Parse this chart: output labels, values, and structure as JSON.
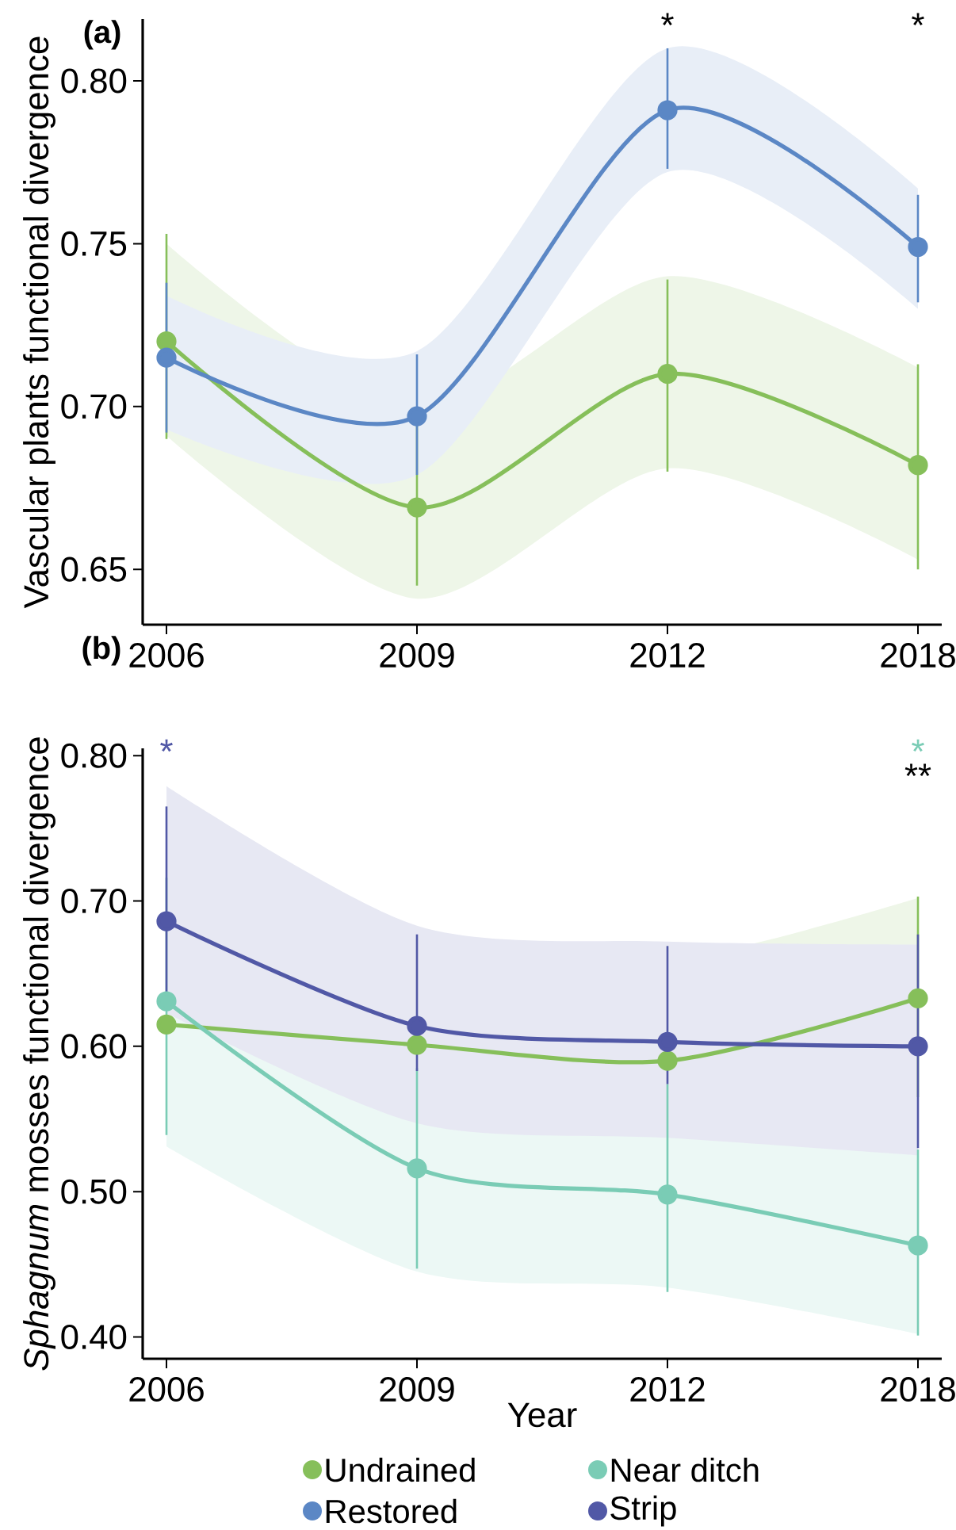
{
  "chart_data": [
    {
      "type": "line",
      "ylabel": "Vascular plants functional divergence",
      "categories": [
        "2006",
        "2009",
        "2012",
        "2018"
      ],
      "ylim": [
        0.633,
        0.819
      ],
      "yticks": [
        {
          "value": 0.65,
          "label": "0.65"
        },
        {
          "value": 0.7,
          "label": "0.70"
        },
        {
          "value": 0.75,
          "label": "0.75"
        },
        {
          "value": 0.8,
          "label": "0.80"
        }
      ],
      "marker": "circle",
      "legend": "bottom",
      "series": [
        {
          "name": "Undrained",
          "color": "#86bf5a",
          "values": [
            0.72,
            0.669,
            0.71,
            0.682
          ],
          "errors": [
            [
              0.69,
              0.753
            ],
            [
              0.645,
              0.695
            ],
            [
              0.68,
              0.739
            ],
            [
              0.65,
              0.713
            ]
          ],
          "lower": [
            0.691,
            0.641,
            0.681,
            0.653
          ],
          "upper": [
            0.75,
            0.7,
            0.74,
            0.712
          ]
        },
        {
          "name": "Restored",
          "color": "#5b87c5",
          "values": [
            0.715,
            0.697,
            0.791,
            0.749
          ],
          "errors": [
            [
              0.692,
              0.738
            ],
            [
              0.679,
              0.716
            ],
            [
              0.773,
              0.81
            ],
            [
              0.732,
              0.765
            ]
          ],
          "lower": [
            0.693,
            0.679,
            0.772,
            0.73
          ],
          "upper": [
            0.734,
            0.717,
            0.81,
            0.767
          ]
        }
      ],
      "annotations": [
        "**(a)**",
        "*",
        "*"
      ]
    },
    {
      "type": "line",
      "xlabel": "Year",
      "ylabel": "*Sphagnum* mosses functional divergence",
      "categories": [
        "2006",
        "2009",
        "2012",
        "2018"
      ],
      "ylim": [
        0.385,
        0.805
      ],
      "yticks": [
        {
          "value": 0.4,
          "label": "0.40"
        },
        {
          "value": 0.5,
          "label": "0.50"
        },
        {
          "value": 0.6,
          "label": "0.60"
        },
        {
          "value": 0.7,
          "label": "0.70"
        },
        {
          "value": 0.8,
          "label": "0.80"
        }
      ],
      "marker": "circle",
      "legend": "bottom",
      "series": [
        {
          "color": "#86bf5a",
          "values": [
            0.615,
            0.601,
            0.59,
            0.633
          ],
          "errors": [
            null,
            null,
            null,
            [
              0.565,
              0.703
            ]
          ],
          "lower": [
            0.55,
            0.541,
            0.529,
            0.566
          ],
          "upper": [
            0.665,
            0.667,
            0.659,
            0.702
          ]
        },
        {
          "name": "Near ditch",
          "color": "#7accb5",
          "values": [
            0.631,
            0.516,
            0.498,
            0.463
          ],
          "errors": [
            [
              0.539,
              0.716
            ],
            [
              0.447,
              0.585
            ],
            [
              0.431,
              0.574
            ],
            [
              0.401,
              0.529
            ]
          ],
          "lower": [
            0.531,
            0.445,
            0.434,
            0.402
          ],
          "upper": [
            0.732,
            0.589,
            0.569,
            0.527
          ]
        },
        {
          "name": "Strip",
          "color": "#5158a6",
          "values": [
            0.686,
            0.614,
            0.603,
            0.6
          ],
          "errors": [
            [
              0.628,
              0.765
            ],
            [
              0.583,
              0.677
            ],
            [
              0.574,
              0.669
            ],
            [
              0.53,
              0.677
            ]
          ],
          "lower": [
            0.623,
            0.547,
            0.537,
            0.525
          ],
          "upper": [
            0.779,
            0.683,
            0.672,
            0.67
          ]
        }
      ],
      "annotations": [
        "**(b)**",
        "*",
        "*",
        "**"
      ]
    }
  ]
}
